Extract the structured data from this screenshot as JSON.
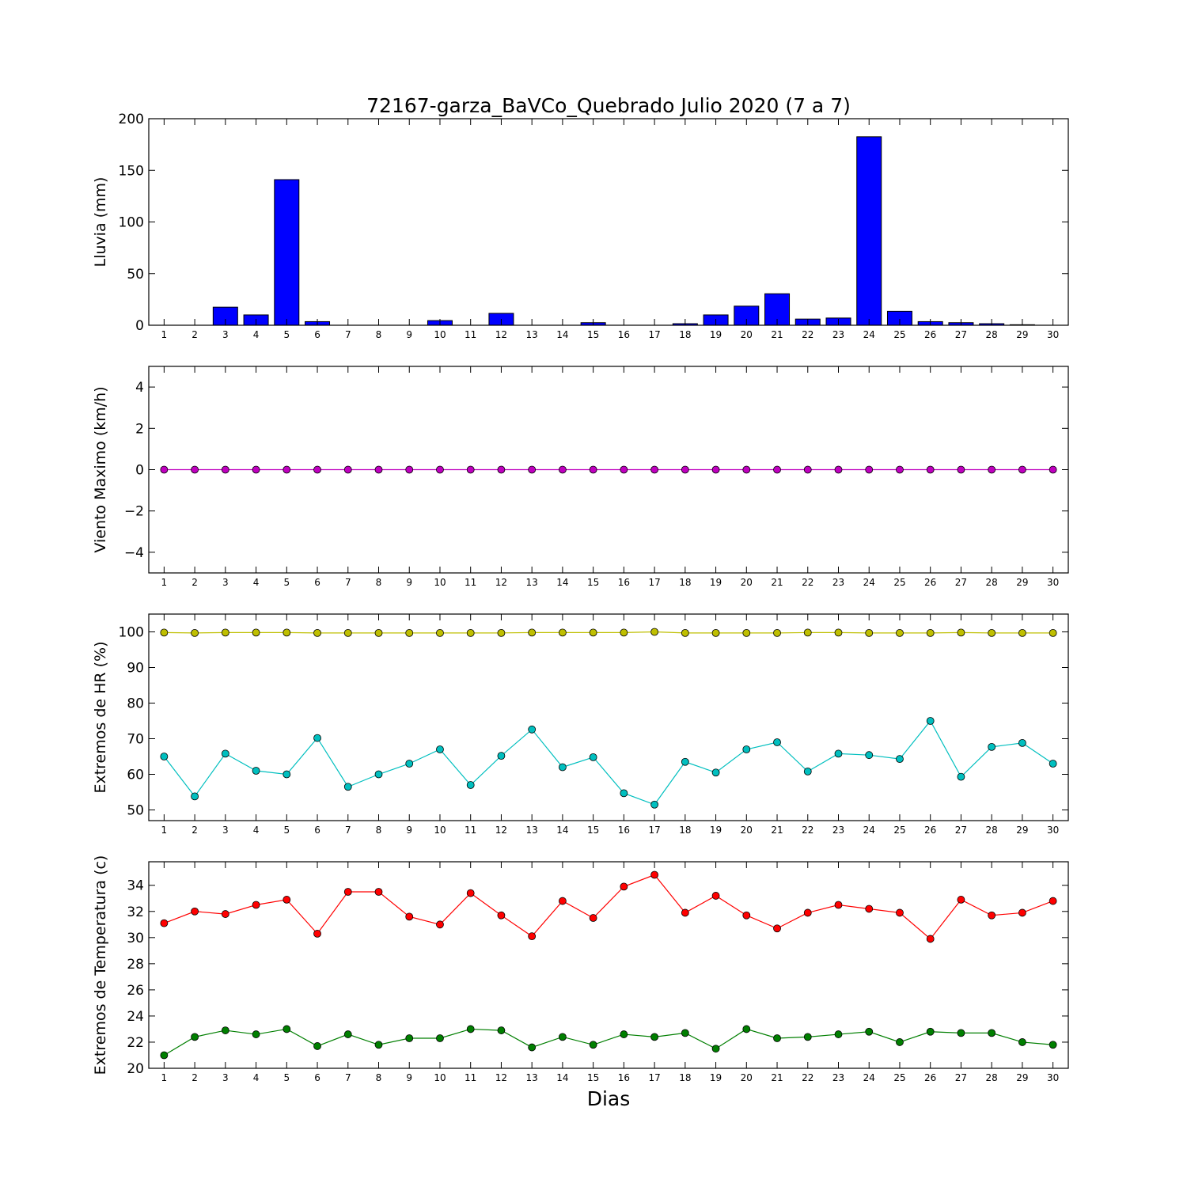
{
  "title": "72167-garza_BaVCo_Quebrado Julio 2020  (7 a 7)",
  "xlabel": "Dias",
  "chart_data": [
    {
      "type": "bar",
      "ylabel": "Lluvia (mm)",
      "ylim": [
        0,
        200
      ],
      "yticks": [
        0,
        50,
        100,
        150,
        200
      ],
      "x": [
        1,
        2,
        3,
        4,
        5,
        6,
        7,
        8,
        9,
        10,
        11,
        12,
        13,
        14,
        15,
        16,
        17,
        18,
        19,
        20,
        21,
        22,
        23,
        24,
        25,
        26,
        27,
        28,
        29,
        30
      ],
      "series": [
        {
          "color": "#0000ff",
          "values": [
            0,
            0,
            17.5,
            10,
            141,
            3.5,
            0,
            0,
            0,
            4.5,
            0,
            11.5,
            0,
            0,
            2.5,
            0,
            0,
            1.5,
            10,
            18.5,
            30.5,
            6,
            7,
            182.5,
            13.5,
            3.5,
            2.5,
            1.5,
            0.5,
            0
          ]
        }
      ]
    },
    {
      "type": "line",
      "ylabel": "Viento Maximo (km/h)",
      "ylim": [
        -5,
        5
      ],
      "yticks": [
        -4,
        -2,
        0,
        2,
        4
      ],
      "x": [
        1,
        2,
        3,
        4,
        5,
        6,
        7,
        8,
        9,
        10,
        11,
        12,
        13,
        14,
        15,
        16,
        17,
        18,
        19,
        20,
        21,
        22,
        23,
        24,
        25,
        26,
        27,
        28,
        29,
        30
      ],
      "series": [
        {
          "color": "#bf00bf",
          "values": [
            0,
            0,
            0,
            0,
            0,
            0,
            0,
            0,
            0,
            0,
            0,
            0,
            0,
            0,
            0,
            0,
            0,
            0,
            0,
            0,
            0,
            0,
            0,
            0,
            0,
            0,
            0,
            0,
            0,
            0
          ]
        }
      ]
    },
    {
      "type": "line",
      "ylabel": "Extremos de HR (%)",
      "ylim": [
        47,
        105
      ],
      "yticks": [
        50,
        60,
        70,
        80,
        90,
        100
      ],
      "x": [
        1,
        2,
        3,
        4,
        5,
        6,
        7,
        8,
        9,
        10,
        11,
        12,
        13,
        14,
        15,
        16,
        17,
        18,
        19,
        20,
        21,
        22,
        23,
        24,
        25,
        26,
        27,
        28,
        29,
        30
      ],
      "series": [
        {
          "color": "#bfbf00",
          "values": [
            99.8,
            99.7,
            99.8,
            99.8,
            99.8,
            99.7,
            99.7,
            99.7,
            99.7,
            99.7,
            99.7,
            99.7,
            99.8,
            99.8,
            99.8,
            99.8,
            100.0,
            99.7,
            99.7,
            99.7,
            99.7,
            99.8,
            99.8,
            99.7,
            99.7,
            99.7,
            99.8,
            99.7,
            99.7,
            99.7
          ]
        },
        {
          "color": "#00bfbf",
          "values": [
            65,
            53.8,
            65.8,
            61,
            60,
            70.2,
            56.5,
            60,
            63,
            67,
            57,
            65.2,
            72.6,
            62,
            64.8,
            54.7,
            51.5,
            63.5,
            60.5,
            67,
            69,
            60.8,
            65.8,
            65.4,
            64.3,
            75,
            59.3,
            67.7,
            68.8,
            63
          ]
        }
      ]
    },
    {
      "type": "line",
      "ylabel": "Extremos de Temperatura (c)",
      "ylim": [
        20,
        35.8
      ],
      "yticks": [
        20,
        22,
        24,
        26,
        28,
        30,
        32,
        34
      ],
      "x": [
        1,
        2,
        3,
        4,
        5,
        6,
        7,
        8,
        9,
        10,
        11,
        12,
        13,
        14,
        15,
        16,
        17,
        18,
        19,
        20,
        21,
        22,
        23,
        24,
        25,
        26,
        27,
        28,
        29,
        30
      ],
      "series": [
        {
          "color": "#ff0000",
          "values": [
            31.1,
            32,
            31.8,
            32.5,
            32.9,
            30.3,
            33.5,
            33.5,
            31.6,
            31,
            33.4,
            31.7,
            30.1,
            32.8,
            31.5,
            33.9,
            34.8,
            31.9,
            33.2,
            31.7,
            30.7,
            31.9,
            32.5,
            32.2,
            31.9,
            29.9,
            32.9,
            31.7,
            31.9,
            32.8
          ]
        },
        {
          "color": "#007f00",
          "values": [
            21,
            22.4,
            22.9,
            22.6,
            23,
            21.7,
            22.6,
            21.8,
            22.3,
            22.3,
            23,
            22.9,
            21.6,
            22.4,
            21.8,
            22.6,
            22.4,
            22.7,
            21.5,
            23,
            22.3,
            22.4,
            22.6,
            22.8,
            22,
            22.8,
            22.7,
            22.7,
            22,
            21.8
          ]
        }
      ]
    }
  ]
}
